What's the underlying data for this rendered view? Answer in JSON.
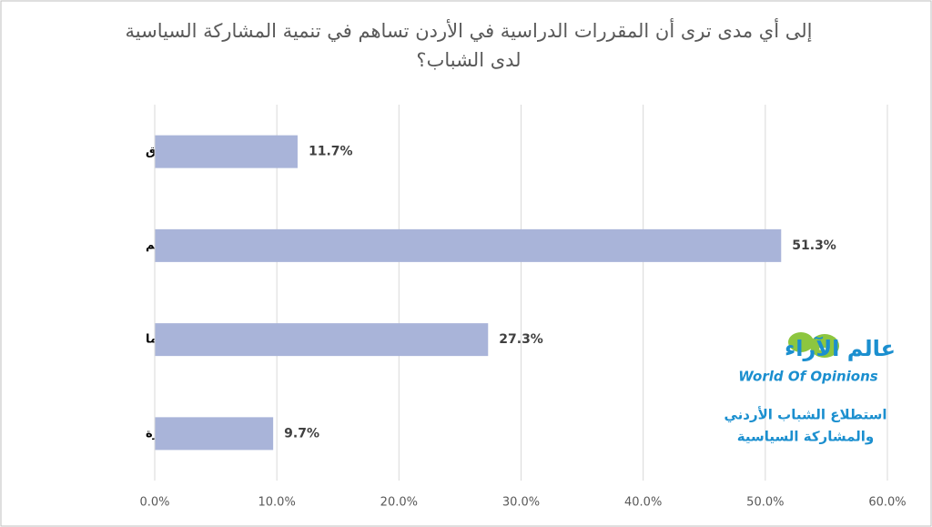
{
  "chart_data": {
    "type": "barh",
    "title": "إلى أي مدى ترى أن المقررات الدراسية في الأردن تساهم في تنمية المشاركة السياسية لدى الشباب؟",
    "categories": [
      "لا تساهم على الاطلاق",
      "لا تساهم",
      "إلى حد ما",
      "بدرجة كبيرة"
    ],
    "values": [
      11.7,
      51.3,
      27.3,
      9.7
    ],
    "value_labels": [
      "11.7%",
      "51.3%",
      "27.3%",
      "9.7%"
    ],
    "color": "#a9b4d9",
    "xlim": [
      0,
      60
    ],
    "xticks": [
      {
        "value": 0,
        "label": "0.0%"
      },
      {
        "value": 10,
        "label": "10.0%"
      },
      {
        "value": 20,
        "label": "20.0%"
      },
      {
        "value": 30,
        "label": "30.0%"
      },
      {
        "value": 40,
        "label": "40.0%"
      },
      {
        "value": 50,
        "label": "50.0%"
      },
      {
        "value": 60,
        "label": "60.0%"
      }
    ],
    "grid": true,
    "annotations": [
      "عالم الآراء",
      "World Of Opinions",
      "استطلاع الشباب الأردني",
      "والمشاركة السياسية"
    ]
  }
}
